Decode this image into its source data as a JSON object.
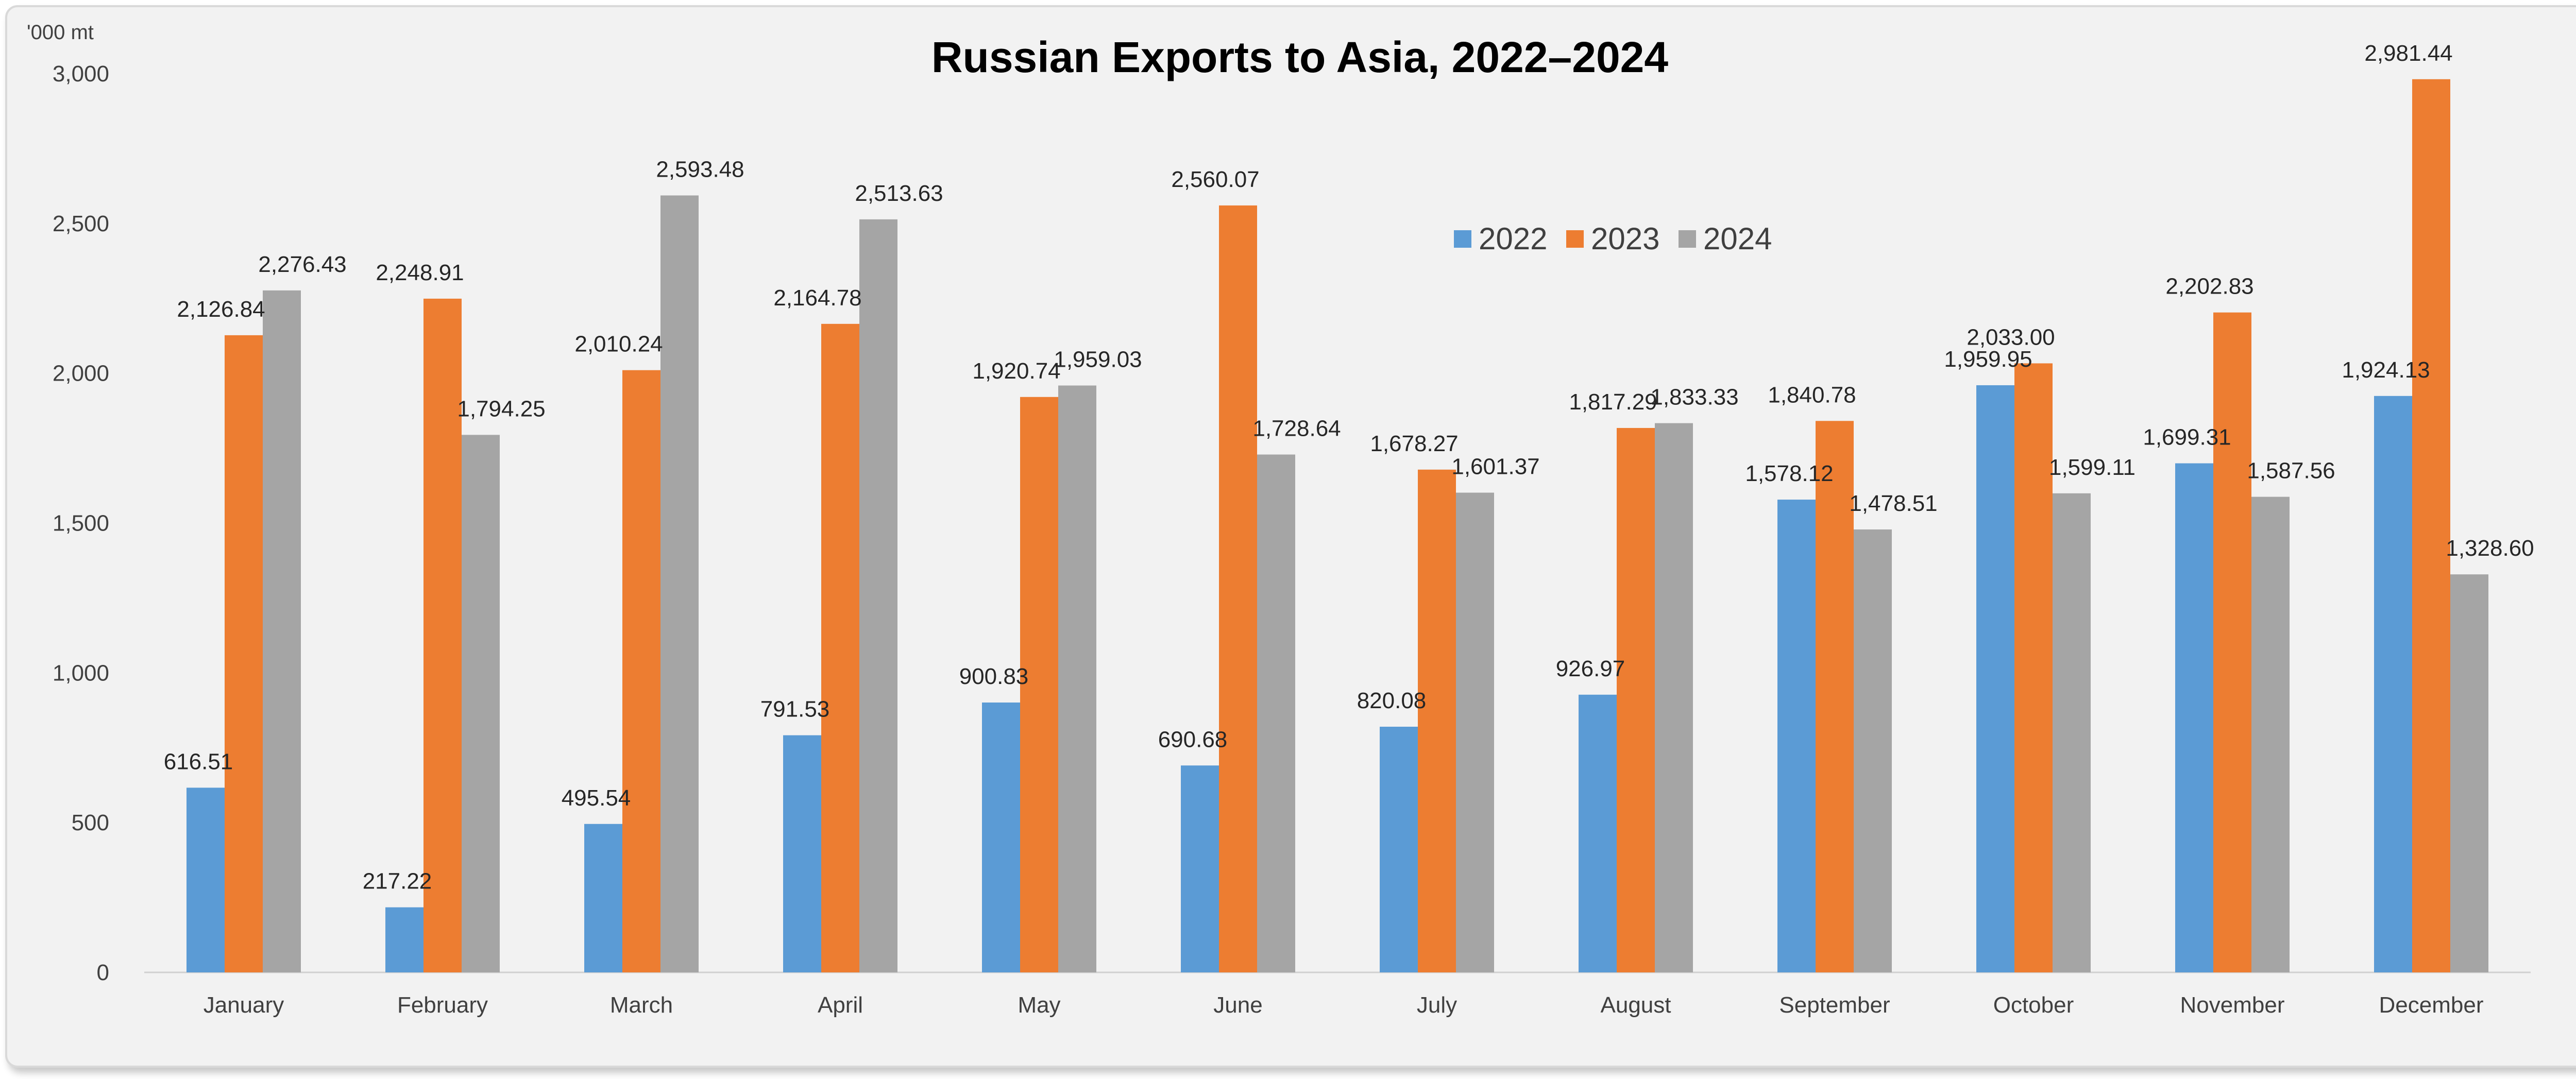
{
  "chart_data": {
    "type": "bar",
    "title": "Russian Exports to Asia, 2022–2024",
    "ylabel": "'000 mt",
    "xlabel": "",
    "ylim": [
      0,
      3000
    ],
    "yticks": [
      0,
      500,
      1000,
      1500,
      2000,
      2500,
      3000
    ],
    "ytick_labels": [
      "0",
      "500",
      "1,000",
      "1,500",
      "2,000",
      "2,500",
      "3,000"
    ],
    "grid": false,
    "legend_position": "top-center",
    "categories": [
      "January",
      "February",
      "March",
      "April",
      "May",
      "June",
      "July",
      "August",
      "September",
      "October",
      "November",
      "December"
    ],
    "series": [
      {
        "name": "2022",
        "color": "#5b9bd5",
        "values": [
          616.51,
          217.22,
          495.54,
          791.53,
          900.83,
          690.68,
          820.08,
          926.97,
          1578.12,
          1959.95,
          1699.31,
          1924.13
        ],
        "labels": [
          "616.51",
          "217.22",
          "495.54",
          "791.53",
          "900.83",
          "690.68",
          "820.08",
          "926.97",
          "1,578.12",
          "1,959.95",
          "1,699.31",
          "1,924.13"
        ]
      },
      {
        "name": "2023",
        "color": "#ed7d31",
        "values": [
          2126.84,
          2248.91,
          2010.24,
          2164.78,
          1920.74,
          2560.07,
          1678.27,
          1817.29,
          1840.78,
          2033.0,
          2202.83,
          2981.44
        ],
        "labels": [
          "2,126.84",
          "2,248.91",
          "2,010.24",
          "2,164.78",
          "1,920.74",
          "2,560.07",
          "1,678.27",
          "1,817.29",
          "1,840.78",
          "2,033.00",
          "2,202.83",
          "2,981.44"
        ]
      },
      {
        "name": "2024",
        "color": "#a5a5a5",
        "values": [
          2276.43,
          1794.25,
          2593.48,
          2513.63,
          1959.03,
          1728.64,
          1601.37,
          1833.33,
          1478.51,
          1599.11,
          1587.56,
          1328.6
        ],
        "labels": [
          "2,276.43",
          "1,794.25",
          "2,593.48",
          "2,513.63",
          "1,959.03",
          "1,728.64",
          "1,601.37",
          "1,833.33",
          "1,478.51",
          "1,599.11",
          "1,587.56",
          "1,328.60"
        ]
      }
    ]
  }
}
